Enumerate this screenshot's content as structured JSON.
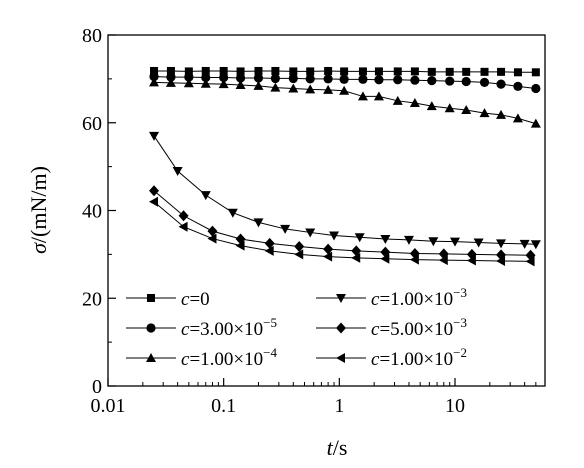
{
  "chart_data": {
    "type": "scatter",
    "title": "",
    "xlabel_var": "t",
    "xlabel_unit": "/s",
    "ylabel_var": "σ",
    "ylabel_unit": "/(mN/m)",
    "x_scale": "log",
    "xlim": [
      0.01,
      60
    ],
    "ylim": [
      0,
      80
    ],
    "x_ticks": [
      {
        "value": 0.01,
        "label": "0.01"
      },
      {
        "value": 0.1,
        "label": "0.1"
      },
      {
        "value": 1,
        "label": "1"
      },
      {
        "value": 10,
        "label": "10"
      }
    ],
    "y_ticks": [
      {
        "value": 0,
        "label": "0"
      },
      {
        "value": 20,
        "label": "20"
      },
      {
        "value": 40,
        "label": "40"
      },
      {
        "value": 60,
        "label": "60"
      },
      {
        "value": 80,
        "label": "80"
      }
    ],
    "grid": false,
    "legend_location": "bottom",
    "series": [
      {
        "marker": "square",
        "legend_var": "c",
        "legend_value": "=0",
        "x": [
          0.025,
          0.035,
          0.05,
          0.07,
          0.1,
          0.14,
          0.2,
          0.28,
          0.4,
          0.56,
          0.8,
          1.1,
          1.6,
          2.2,
          3.2,
          4.5,
          6.3,
          9,
          12.5,
          18,
          25,
          35,
          50
        ],
        "y": [
          71.8,
          71.8,
          71.7,
          71.8,
          71.8,
          71.7,
          71.8,
          71.8,
          71.7,
          71.7,
          71.8,
          71.7,
          71.7,
          71.7,
          71.7,
          71.7,
          71.6,
          71.6,
          71.6,
          71.6,
          71.6,
          71.5,
          71.5
        ]
      },
      {
        "marker": "circle",
        "legend_var": "c",
        "legend_value": "=3.00×10",
        "legend_exp": "−5",
        "x": [
          0.025,
          0.035,
          0.05,
          0.07,
          0.1,
          0.14,
          0.2,
          0.28,
          0.4,
          0.56,
          0.8,
          1.1,
          1.6,
          2.2,
          3.2,
          4.5,
          6.3,
          9,
          12.5,
          18,
          25,
          35,
          50
        ],
        "y": [
          70.5,
          70.4,
          70.4,
          70.3,
          70.3,
          70.2,
          70.2,
          70.1,
          70.1,
          70,
          70,
          69.9,
          69.9,
          69.8,
          69.8,
          69.7,
          69.6,
          69.5,
          69.4,
          69.2,
          68.8,
          68.3,
          67.8
        ]
      },
      {
        "marker": "triangle-up",
        "legend_var": "c",
        "legend_value": "=1.00×10",
        "legend_exp": "−4",
        "x": [
          0.025,
          0.035,
          0.05,
          0.07,
          0.1,
          0.14,
          0.2,
          0.28,
          0.4,
          0.56,
          0.8,
          1.1,
          1.6,
          2.2,
          3.2,
          4.5,
          6.3,
          9,
          12.5,
          18,
          25,
          35,
          50
        ],
        "y": [
          69.2,
          69.1,
          69,
          68.9,
          68.8,
          68.6,
          68.4,
          68,
          67.8,
          67.6,
          67.5,
          67.3,
          66,
          66,
          65,
          64.5,
          63.8,
          63.3,
          62.9,
          62.2,
          61.8,
          61,
          59.8
        ]
      },
      {
        "marker": "triangle-down",
        "legend_var": "c",
        "legend_value": "=1.00×10",
        "legend_exp": "−3",
        "x": [
          0.025,
          0.04,
          0.07,
          0.12,
          0.2,
          0.34,
          0.56,
          0.9,
          1.5,
          2.5,
          4,
          6.5,
          10,
          16,
          25,
          40,
          50
        ],
        "y": [
          57,
          49,
          43.5,
          39.5,
          37.3,
          35.8,
          35,
          34.3,
          33.9,
          33.5,
          33.3,
          33,
          32.9,
          32.7,
          32.5,
          32.4,
          32.3
        ]
      },
      {
        "marker": "diamond",
        "legend_var": "c",
        "legend_value": "=5.00×10",
        "legend_exp": "−3",
        "x": [
          0.025,
          0.045,
          0.08,
          0.14,
          0.25,
          0.45,
          0.8,
          1.4,
          2.5,
          4.5,
          8,
          14,
          25,
          45
        ],
        "y": [
          44.5,
          38.8,
          35.3,
          33.5,
          32.5,
          31.8,
          31.2,
          30.8,
          30.5,
          30.2,
          30.1,
          30,
          29.9,
          29.8
        ]
      },
      {
        "marker": "triangle-left",
        "legend_var": "c",
        "legend_value": "=1.00×10",
        "legend_exp": "−2",
        "x": [
          0.025,
          0.045,
          0.08,
          0.14,
          0.25,
          0.45,
          0.8,
          1.4,
          2.5,
          4.5,
          8,
          14,
          25,
          45
        ],
        "y": [
          42,
          36.3,
          33.6,
          32,
          30.8,
          30,
          29.5,
          29.2,
          29,
          28.8,
          28.7,
          28.6,
          28.5,
          28.4
        ]
      }
    ]
  }
}
